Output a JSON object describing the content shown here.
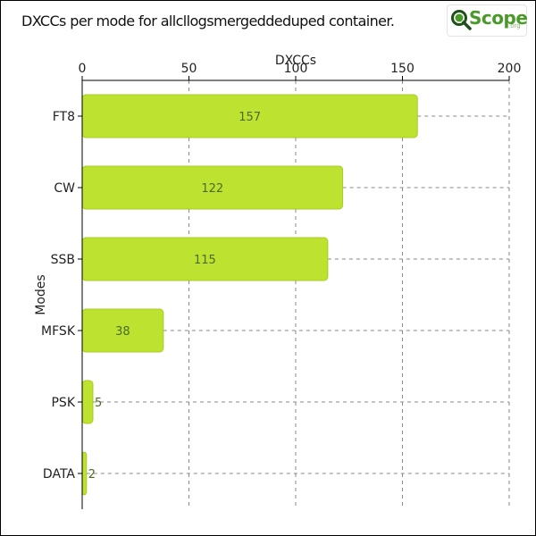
{
  "title": "DXCCs per mode for allcllogsmergeddeduped container.",
  "logo": {
    "text": "Scope",
    "suffix": ".org"
  },
  "colors": {
    "bar": "#bde22f",
    "bar_stroke": "#a9cc22",
    "grid": "#888888",
    "label": "#4a6a2a"
  },
  "chart_data": {
    "type": "bar",
    "orientation": "horizontal",
    "title": "DXCCs per mode for allcllogsmergeddeduped container.",
    "xlabel": "DXCCs",
    "ylabel": "Modes",
    "categories": [
      "FT8",
      "CW",
      "SSB",
      "MFSK",
      "PSK",
      "DATA"
    ],
    "values": [
      157,
      122,
      115,
      38,
      5,
      2
    ],
    "xlim": [
      0,
      200
    ],
    "xticks": [
      0,
      50,
      100,
      150,
      200
    ],
    "x_axis_position": "top",
    "grid": true,
    "legend": "none"
  }
}
